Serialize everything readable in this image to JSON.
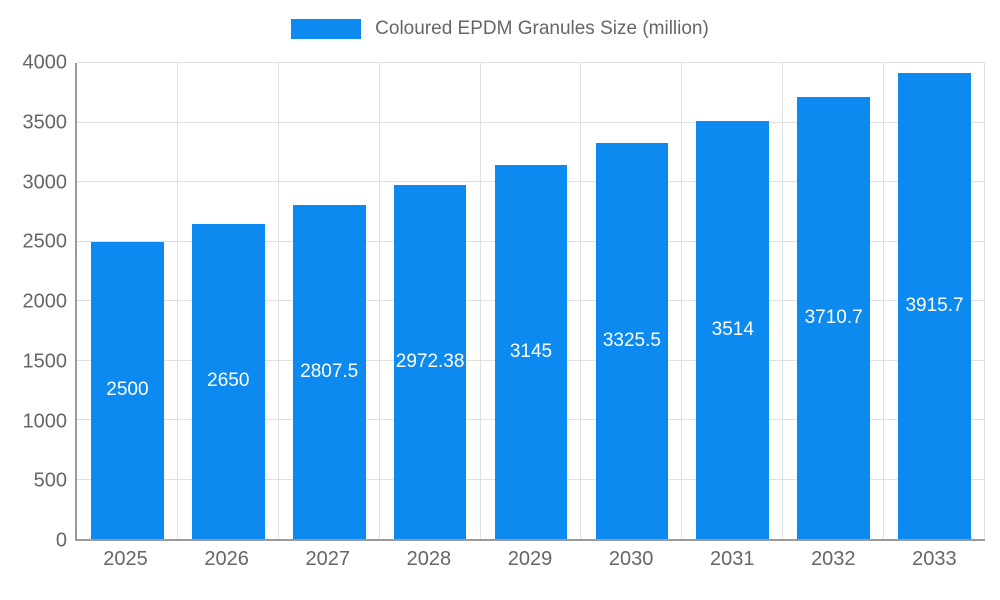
{
  "legend": {
    "label": "Coloured EPDM Granules Size (million)"
  },
  "colors": {
    "bar": "#0d8af0",
    "grid": "#e0e0e0",
    "axis": "#9a9a9a",
    "tick_text": "#666666",
    "value_text": "#ffffff",
    "legend_text": "#666666"
  },
  "chart_data": {
    "type": "bar",
    "categories": [
      "2025",
      "2026",
      "2027",
      "2028",
      "2029",
      "2030",
      "2031",
      "2032",
      "2033"
    ],
    "values": [
      2500,
      2650,
      2807.5,
      2972.38,
      3145,
      3325.5,
      3514,
      3710.7,
      3915.7
    ],
    "value_labels": [
      "2500",
      "2650",
      "2807.5",
      "2972.38",
      "3145",
      "3325.5",
      "3514",
      "3710.7",
      "3915.7"
    ],
    "title": "Coloured EPDM Granules Size (million)",
    "xlabel": "",
    "ylabel": "",
    "ylim": [
      0,
      4000
    ],
    "ytick_step": 500,
    "ytick_labels": [
      "0",
      "500",
      "1000",
      "1500",
      "2000",
      "2500",
      "3000",
      "3500",
      "4000"
    ],
    "grid": true,
    "legend_position": "top",
    "bar_width_fraction": 0.72
  }
}
